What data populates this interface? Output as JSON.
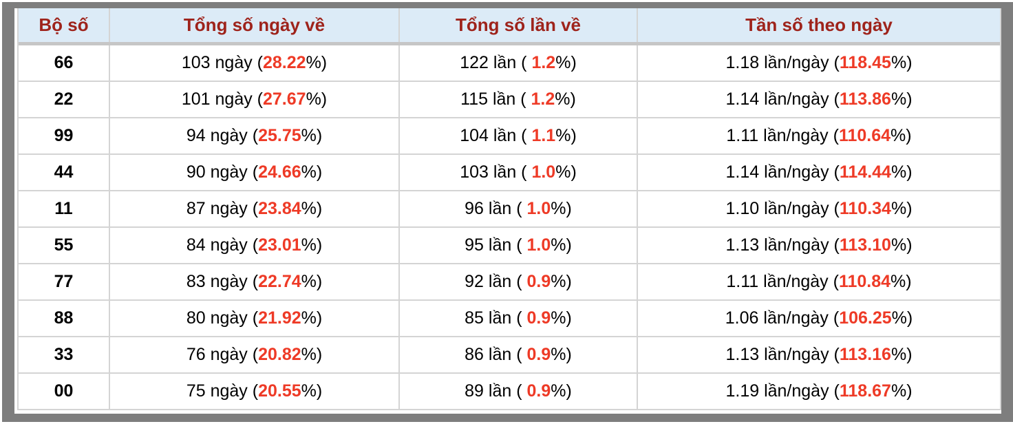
{
  "colors": {
    "border_gray": "#7e7e7e",
    "header_bg": "#dcebf7",
    "header_red": "#9e231b",
    "accent_red": "#ee3a26",
    "grid_line": "#d4d4d4",
    "header_divider": "#c6c6c6"
  },
  "table": {
    "headers": [
      "Bộ số",
      "Tổng số ngày về",
      "Tổng số lần về",
      "Tần số theo ngày"
    ],
    "rows": [
      {
        "pair": "66",
        "days": {
          "prefix": "103 ngày (",
          "pct": "28.22",
          "suffix": "%)"
        },
        "times": {
          "prefix": "122 lần ( ",
          "pct": "1.2",
          "suffix": "%)"
        },
        "freq": {
          "prefix": "1.18 lần/ngày (",
          "pct": "118.45",
          "suffix": "%)"
        }
      },
      {
        "pair": "22",
        "days": {
          "prefix": "101 ngày (",
          "pct": "27.67",
          "suffix": "%)"
        },
        "times": {
          "prefix": "115 lần ( ",
          "pct": "1.2",
          "suffix": "%)"
        },
        "freq": {
          "prefix": "1.14 lần/ngày (",
          "pct": "113.86",
          "suffix": "%)"
        }
      },
      {
        "pair": "99",
        "days": {
          "prefix": "94 ngày (",
          "pct": "25.75",
          "suffix": "%)"
        },
        "times": {
          "prefix": "104 lần ( ",
          "pct": "1.1",
          "suffix": "%)"
        },
        "freq": {
          "prefix": "1.11 lần/ngày (",
          "pct": "110.64",
          "suffix": "%)"
        }
      },
      {
        "pair": "44",
        "days": {
          "prefix": "90 ngày (",
          "pct": "24.66",
          "suffix": "%)"
        },
        "times": {
          "prefix": "103 lần ( ",
          "pct": "1.0",
          "suffix": "%)"
        },
        "freq": {
          "prefix": "1.14 lần/ngày (",
          "pct": "114.44",
          "suffix": "%)"
        }
      },
      {
        "pair": "11",
        "days": {
          "prefix": "87 ngày (",
          "pct": "23.84",
          "suffix": "%)"
        },
        "times": {
          "prefix": "96 lần ( ",
          "pct": "1.0",
          "suffix": "%)"
        },
        "freq": {
          "prefix": "1.10 lần/ngày (",
          "pct": "110.34",
          "suffix": "%)"
        }
      },
      {
        "pair": "55",
        "days": {
          "prefix": "84 ngày (",
          "pct": "23.01",
          "suffix": "%)"
        },
        "times": {
          "prefix": "95 lần ( ",
          "pct": "1.0",
          "suffix": "%)"
        },
        "freq": {
          "prefix": "1.13 lần/ngày (",
          "pct": "113.10",
          "suffix": "%)"
        }
      },
      {
        "pair": "77",
        "days": {
          "prefix": "83 ngày (",
          "pct": "22.74",
          "suffix": "%)"
        },
        "times": {
          "prefix": "92 lần ( ",
          "pct": "0.9",
          "suffix": "%)"
        },
        "freq": {
          "prefix": "1.11 lần/ngày (",
          "pct": "110.84",
          "suffix": "%)"
        }
      },
      {
        "pair": "88",
        "days": {
          "prefix": "80 ngày (",
          "pct": "21.92",
          "suffix": "%)"
        },
        "times": {
          "prefix": "85 lần ( ",
          "pct": "0.9",
          "suffix": "%)"
        },
        "freq": {
          "prefix": "1.06 lần/ngày (",
          "pct": "106.25",
          "suffix": "%)"
        }
      },
      {
        "pair": "33",
        "days": {
          "prefix": "76 ngày (",
          "pct": "20.82",
          "suffix": "%)"
        },
        "times": {
          "prefix": "86 lần ( ",
          "pct": "0.9",
          "suffix": "%)"
        },
        "freq": {
          "prefix": "1.13 lần/ngày (",
          "pct": "113.16",
          "suffix": "%)"
        }
      },
      {
        "pair": "00",
        "days": {
          "prefix": "75 ngày (",
          "pct": "20.55",
          "suffix": "%)"
        },
        "times": {
          "prefix": "89 lần ( ",
          "pct": "0.9",
          "suffix": "%)"
        },
        "freq": {
          "prefix": "1.19 lần/ngày (",
          "pct": "118.67",
          "suffix": "%)"
        }
      }
    ]
  }
}
